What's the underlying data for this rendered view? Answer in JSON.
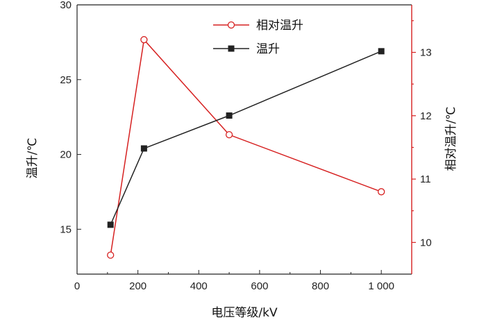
{
  "chart_data": {
    "type": "line",
    "xlabel": "电压等级/kV",
    "ylabel_left": "温升/℃",
    "ylabel_right": "相对温升/℃",
    "xlim": [
      0,
      1100
    ],
    "x_ticks": [
      0,
      200,
      400,
      600,
      800,
      1000
    ],
    "x_tick_labels": [
      "0",
      "200",
      "400",
      "600",
      "800",
      "1 000"
    ],
    "ylim_left": [
      12,
      30
    ],
    "y_left_ticks": [
      15,
      20,
      25,
      30
    ],
    "ylim_right": [
      9.5,
      13.75
    ],
    "y_right_ticks": [
      10,
      11,
      12,
      13
    ],
    "legend_position": "top-center",
    "series": [
      {
        "name": "相对温升",
        "axis": "right",
        "marker": "open-circle",
        "color": "#d62020",
        "x": [
          110,
          220,
          500,
          1000
        ],
        "y": [
          9.8,
          13.2,
          11.7,
          10.8
        ]
      },
      {
        "name": "温升",
        "axis": "left",
        "marker": "filled-square",
        "color": "#222222",
        "x": [
          110,
          220,
          500,
          1000
        ],
        "y": [
          15.3,
          20.4,
          22.6,
          26.9
        ]
      }
    ]
  }
}
